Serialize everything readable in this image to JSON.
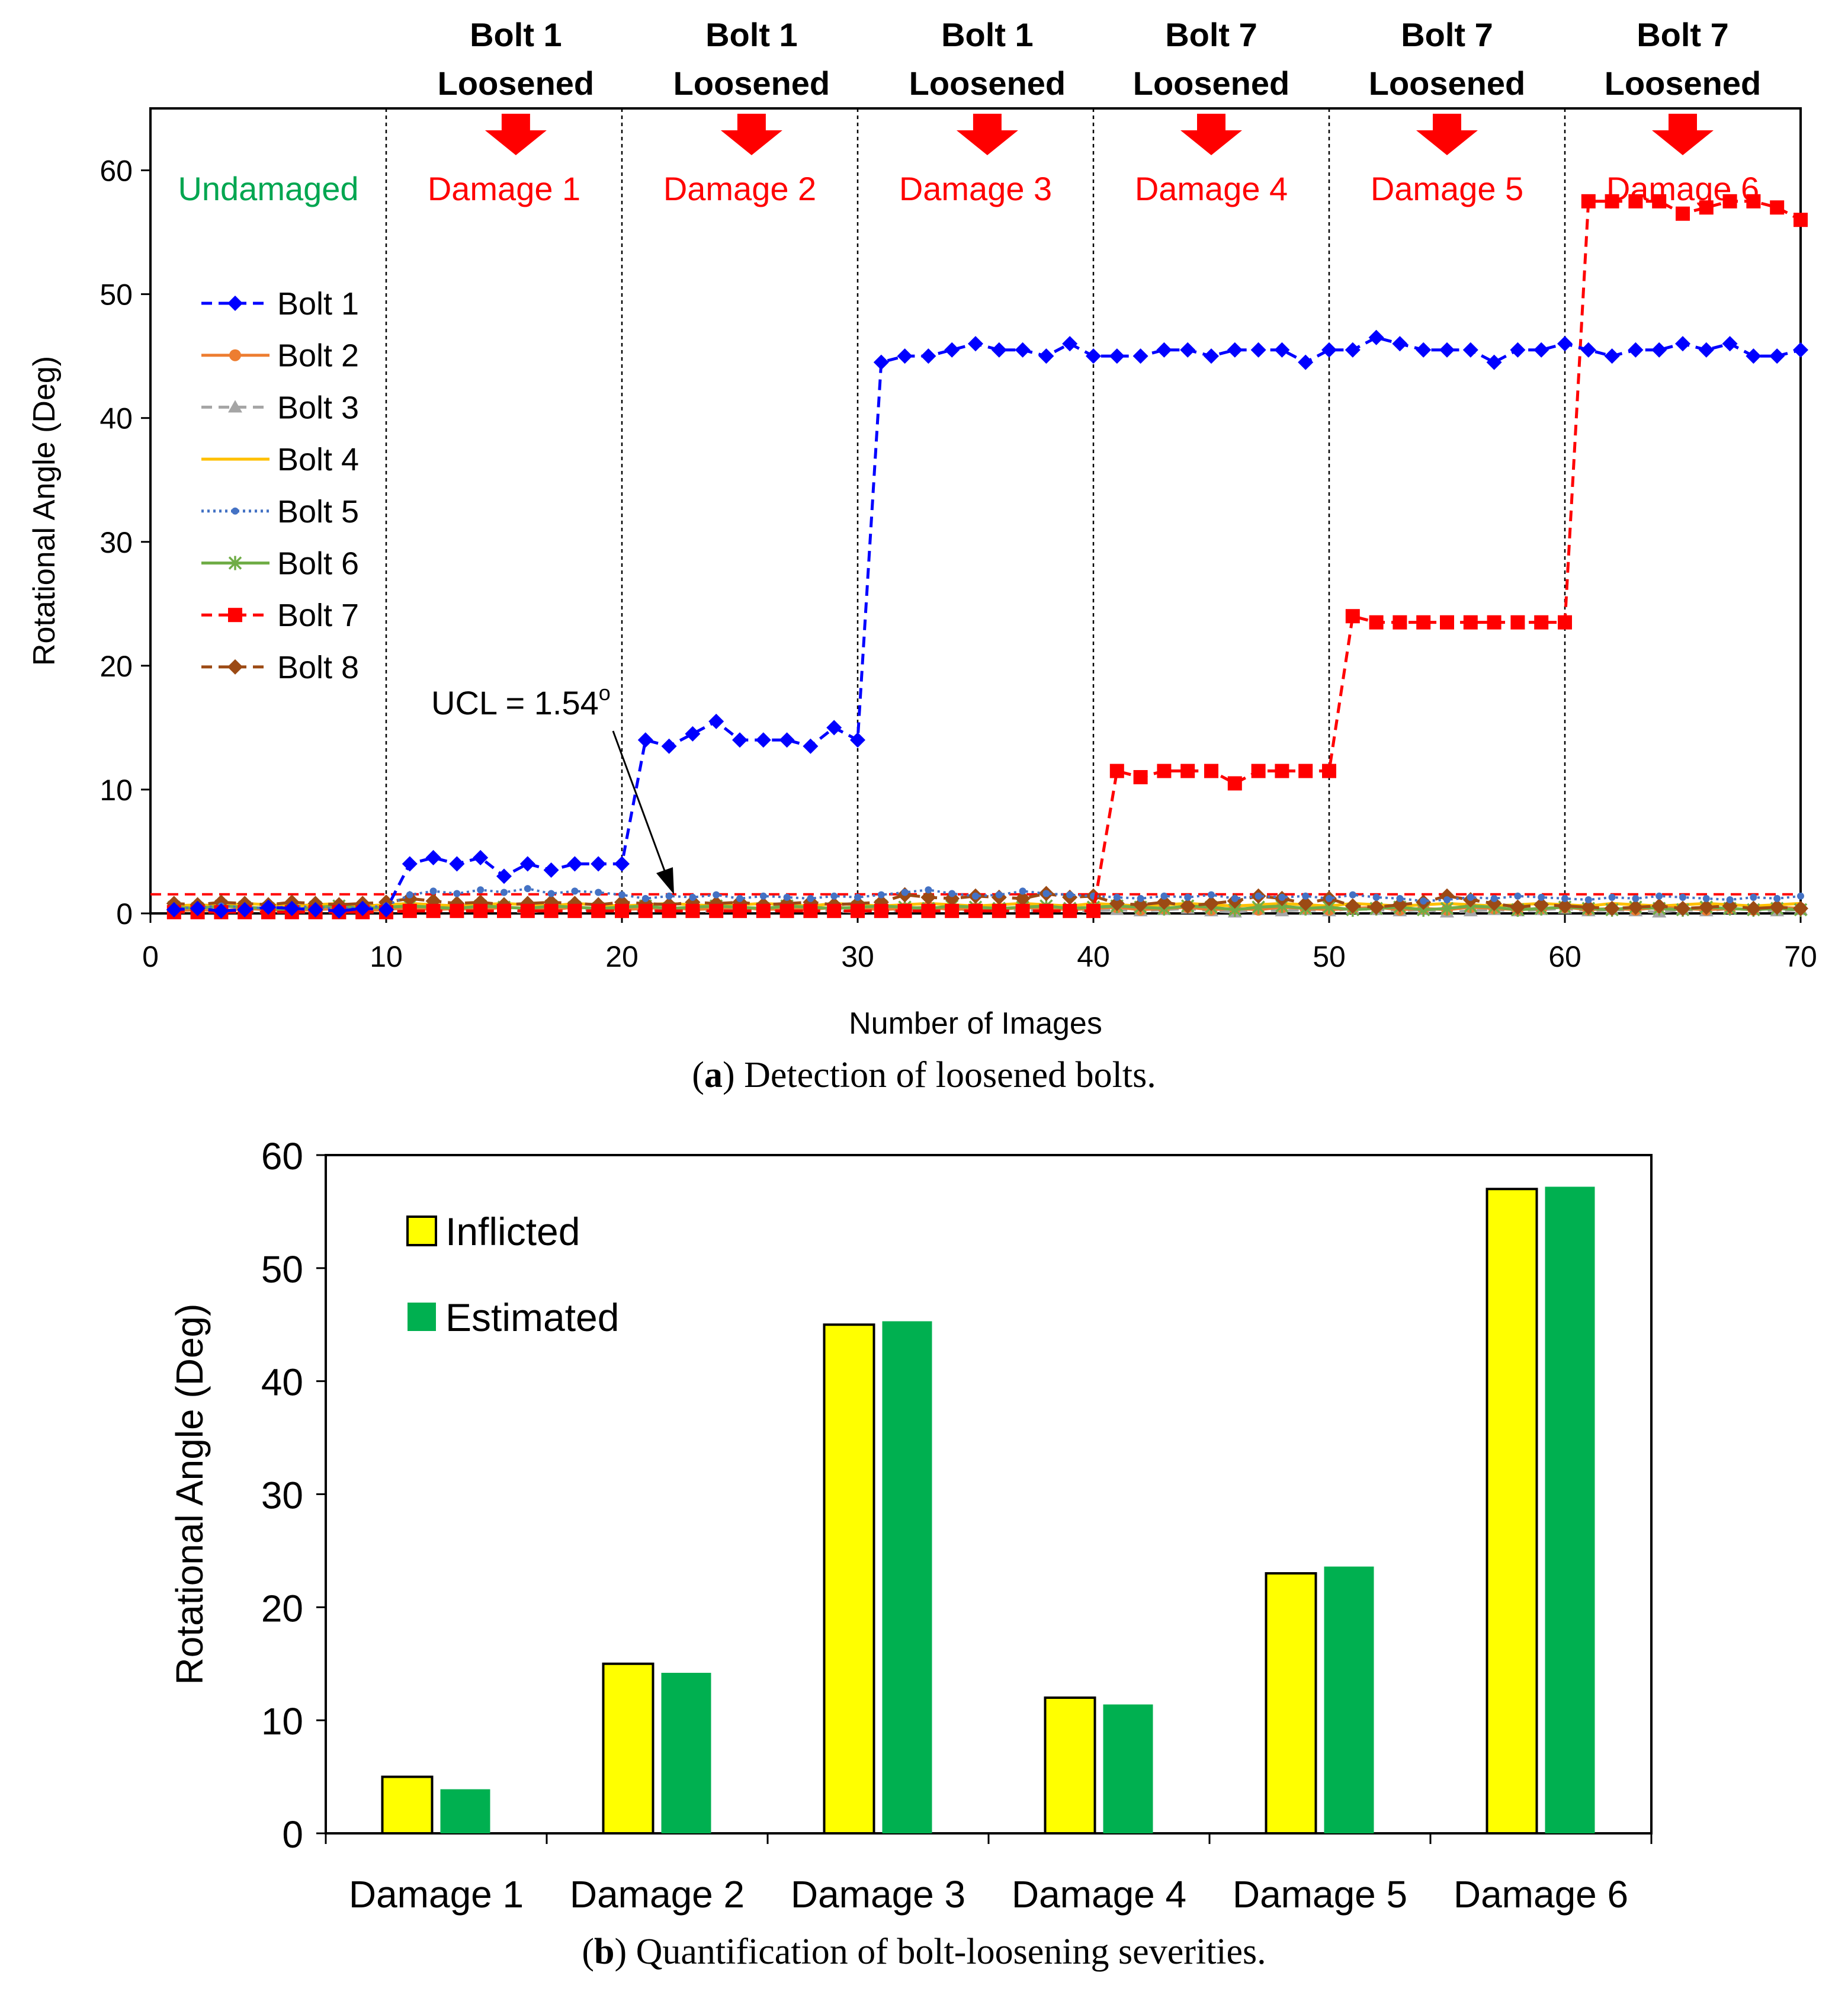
{
  "chart_data": [
    {
      "type": "line",
      "caption_prefix": "(",
      "caption_letter": "a",
      "caption_text": ") Detection of loosened bolts.",
      "xlabel": "Number of Images",
      "ylabel": "Rotational Angle (Deg)",
      "xlim": [
        0,
        70
      ],
      "ylim": [
        0,
        65
      ],
      "xticks": [
        0,
        10,
        20,
        30,
        40,
        50,
        60,
        70
      ],
      "yticks": [
        0,
        10,
        20,
        30,
        40,
        50,
        60
      ],
      "ucl_value": 1.54,
      "ucl_text": "UCL = 1.54",
      "ucl_superscript": "o",
      "phase_boundaries": [
        10,
        20,
        30,
        40,
        50,
        60
      ],
      "phases": [
        {
          "label": "Undamaged",
          "color": "#00a650",
          "x_from": 0,
          "x_to": 10
        },
        {
          "label": "Damage 1",
          "color": "#ff0000",
          "x_from": 10,
          "x_to": 20
        },
        {
          "label": "Damage 2",
          "color": "#ff0000",
          "x_from": 20,
          "x_to": 30
        },
        {
          "label": "Damage 3",
          "color": "#ff0000",
          "x_from": 30,
          "x_to": 40
        },
        {
          "label": "Damage 4",
          "color": "#ff0000",
          "x_from": 40,
          "x_to": 50
        },
        {
          "label": "Damage 5",
          "color": "#ff0000",
          "x_from": 50,
          "x_to": 60
        },
        {
          "label": "Damage 6",
          "color": "#ff0000",
          "x_from": 60,
          "x_to": 70
        }
      ],
      "events": [
        {
          "line1": "Bolt 1",
          "line2": "Loosened",
          "x": 15.5
        },
        {
          "line1": "Bolt 1",
          "line2": "Loosened",
          "x": 25.5
        },
        {
          "line1": "Bolt 1",
          "line2": "Loosened",
          "x": 35.5
        },
        {
          "line1": "Bolt 7",
          "line2": "Loosened",
          "x": 45.0
        },
        {
          "line1": "Bolt 7",
          "line2": "Loosened",
          "x": 55.0
        },
        {
          "line1": "Bolt 7",
          "line2": "Loosened",
          "x": 65.0
        }
      ],
      "series": [
        {
          "name": "Bolt 1",
          "color": "#0000ff",
          "marker": "diamond",
          "dash": "dash",
          "values": [
            0.3,
            0.4,
            0.2,
            0.3,
            0.5,
            0.4,
            0.3,
            0.2,
            0.4,
            0.3,
            4.0,
            4.5,
            4.0,
            4.5,
            3.0,
            4.0,
            3.5,
            4.0,
            4.0,
            4.0,
            14.0,
            13.5,
            14.5,
            15.5,
            14.0,
            14.0,
            14.0,
            13.5,
            15.0,
            14.0,
            44.5,
            45.0,
            45.0,
            45.5,
            46.0,
            45.5,
            45.5,
            45.0,
            46.0,
            45.0,
            45.0,
            45.0,
            45.5,
            45.5,
            45.0,
            45.5,
            45.5,
            45.5,
            44.5,
            45.5,
            45.5,
            46.5,
            46.0,
            45.5,
            45.5,
            45.5,
            44.5,
            45.5,
            45.5,
            46.0,
            45.5,
            45.0,
            45.5,
            45.5,
            46.0,
            45.5,
            46.0,
            45.0,
            45.0,
            45.5
          ]
        },
        {
          "name": "Bolt 2",
          "color": "#ed7d31",
          "marker": "circle",
          "dash": "solid",
          "values": [
            0.2,
            0.3,
            0.2,
            0.4,
            0.3,
            0.2,
            0.3,
            0.4,
            0.2,
            0.3,
            0.5,
            0.3,
            0.4,
            0.3,
            0.5,
            0.4,
            0.3,
            0.5,
            0.4,
            0.3,
            0.4,
            0.5,
            0.3,
            0.4,
            0.5,
            0.3,
            0.4,
            0.3,
            0.5,
            0.4,
            0.3,
            0.4,
            0.5,
            0.3,
            0.4,
            0.3,
            0.5,
            0.4,
            0.3,
            0.4,
            0.5,
            0.3,
            0.4,
            0.5,
            0.3,
            0.4,
            0.3,
            0.5,
            0.4,
            0.3,
            0.4,
            0.5,
            0.3,
            0.4,
            0.3,
            0.5,
            0.4,
            0.3,
            0.4,
            0.5,
            0.3,
            0.4,
            0.3,
            0.5,
            0.4,
            0.3,
            0.4,
            0.3,
            0.5,
            0.4
          ]
        },
        {
          "name": "Bolt 3",
          "color": "#a5a5a5",
          "marker": "triangle",
          "dash": "dash",
          "values": [
            0.1,
            0.2,
            0.3,
            0.2,
            0.1,
            0.2,
            0.3,
            0.2,
            0.1,
            0.2,
            0.3,
            0.2,
            0.4,
            0.3,
            0.2,
            0.1,
            0.3,
            0.2,
            0.4,
            0.3,
            0.2,
            0.3,
            0.1,
            0.2,
            0.3,
            0.2,
            0.4,
            0.3,
            0.2,
            0.1,
            0.3,
            0.2,
            0.3,
            0.2,
            0.4,
            0.3,
            0.2,
            0.3,
            0.1,
            0.2,
            0.3,
            0.2,
            0.3,
            0.4,
            0.2,
            0.1,
            0.3,
            0.2,
            0.3,
            0.2,
            0.4,
            0.3,
            0.2,
            0.3,
            0.1,
            0.2,
            0.3,
            0.2,
            0.3,
            0.4,
            0.2,
            0.3,
            0.2,
            0.1,
            0.3,
            0.2,
            0.4,
            0.3,
            0.2,
            0.3
          ]
        },
        {
          "name": "Bolt 4",
          "color": "#ffc000",
          "marker": "none",
          "dash": "solid",
          "values": [
            0.6,
            0.7,
            0.6,
            0.8,
            0.7,
            0.6,
            0.7,
            0.8,
            0.6,
            0.7,
            0.8,
            0.7,
            0.6,
            0.7,
            0.8,
            0.7,
            0.6,
            0.8,
            0.7,
            0.6,
            0.7,
            0.8,
            0.7,
            0.6,
            0.7,
            0.8,
            0.7,
            0.6,
            0.8,
            0.7,
            0.6,
            0.7,
            0.8,
            0.7,
            0.6,
            0.7,
            0.8,
            0.7,
            0.6,
            0.8,
            0.7,
            0.6,
            0.7,
            0.8,
            0.7,
            0.6,
            0.7,
            0.8,
            0.7,
            0.6,
            0.8,
            0.7,
            0.6,
            0.7,
            0.8,
            0.7,
            0.6,
            0.7,
            0.8,
            0.7,
            0.6,
            0.8,
            0.7,
            0.6,
            0.7,
            0.8,
            0.7,
            0.6,
            0.7,
            0.8
          ]
        },
        {
          "name": "Bolt 5",
          "color": "#4472c4",
          "marker": "dot",
          "dash": "dot",
          "values": [
            0.4,
            0.5,
            0.6,
            0.5,
            0.4,
            0.6,
            0.5,
            0.4,
            0.5,
            0.6,
            1.5,
            1.8,
            1.6,
            1.9,
            1.7,
            2.0,
            1.6,
            1.8,
            1.7,
            1.5,
            1.2,
            1.4,
            1.3,
            1.5,
            1.2,
            1.4,
            1.3,
            1.2,
            1.4,
            1.3,
            1.5,
            1.7,
            1.9,
            1.6,
            1.4,
            1.5,
            1.8,
            1.6,
            1.5,
            1.4,
            1.3,
            1.2,
            1.4,
            1.3,
            1.5,
            1.2,
            1.4,
            1.3,
            1.4,
            1.2,
            1.5,
            1.3,
            1.2,
            1.0,
            1.1,
            1.3,
            1.2,
            1.4,
            1.3,
            1.2,
            1.1,
            1.3,
            1.2,
            1.4,
            1.3,
            1.2,
            1.1,
            1.3,
            1.2,
            1.4
          ]
        },
        {
          "name": "Bolt 6",
          "color": "#70ad47",
          "marker": "asterisk",
          "dash": "solid",
          "values": [
            0.5,
            0.4,
            0.6,
            0.5,
            0.4,
            0.3,
            0.5,
            0.6,
            0.4,
            0.5,
            0.6,
            0.5,
            0.4,
            0.6,
            0.5,
            0.4,
            0.6,
            0.5,
            0.4,
            0.5,
            0.6,
            0.4,
            0.5,
            0.6,
            0.5,
            0.4,
            0.6,
            0.5,
            0.4,
            0.5,
            0.6,
            0.5,
            0.4,
            0.6,
            0.5,
            0.4,
            0.5,
            0.6,
            0.4,
            0.5,
            0.6,
            0.5,
            0.4,
            0.6,
            0.5,
            0.3,
            0.5,
            0.6,
            0.4,
            0.5,
            0.3,
            0.4,
            0.5,
            0.3,
            0.4,
            0.6,
            0.5,
            0.3,
            0.4,
            0.5,
            0.4,
            0.3,
            0.5,
            0.4,
            0.3,
            0.5,
            0.4,
            0.3,
            0.4,
            0.3
          ]
        },
        {
          "name": "Bolt 7",
          "color": "#ff0000",
          "marker": "square",
          "dash": "dash",
          "values": [
            0.1,
            0.1,
            0.1,
            0.1,
            0.1,
            0.1,
            0.1,
            0.1,
            0.1,
            0.1,
            0.2,
            0.2,
            0.2,
            0.2,
            0.2,
            0.2,
            0.2,
            0.2,
            0.2,
            0.2,
            0.2,
            0.2,
            0.2,
            0.2,
            0.2,
            0.2,
            0.2,
            0.2,
            0.2,
            0.2,
            0.2,
            0.2,
            0.2,
            0.2,
            0.2,
            0.2,
            0.2,
            0.2,
            0.2,
            0.2,
            11.5,
            11.0,
            11.5,
            11.5,
            11.5,
            10.5,
            11.5,
            11.5,
            11.5,
            11.5,
            24.0,
            23.5,
            23.5,
            23.5,
            23.5,
            23.5,
            23.5,
            23.5,
            23.5,
            23.5,
            57.5,
            57.5,
            57.5,
            57.5,
            56.5,
            57.0,
            57.5,
            57.5,
            57.0,
            56.0
          ]
        },
        {
          "name": "Bolt 8",
          "color": "#9c4a14",
          "marker": "diamond",
          "dash": "dash",
          "values": [
            0.8,
            0.7,
            0.9,
            0.8,
            0.7,
            0.9,
            0.8,
            0.7,
            0.8,
            0.9,
            1.2,
            1.0,
            0.8,
            0.9,
            0.7,
            0.8,
            0.9,
            0.8,
            0.7,
            0.9,
            0.8,
            0.7,
            0.9,
            0.8,
            0.9,
            0.7,
            0.8,
            0.9,
            0.7,
            0.8,
            0.9,
            1.5,
            1.3,
            1.2,
            1.4,
            1.3,
            1.2,
            1.6,
            1.3,
            1.4,
            0.8,
            0.7,
            0.9,
            0.6,
            0.8,
            1.0,
            1.4,
            1.2,
            0.8,
            1.2,
            0.6,
            0.5,
            0.7,
            0.9,
            1.4,
            1.1,
            0.8,
            0.5,
            0.7,
            0.6,
            0.5,
            0.4,
            0.5,
            0.6,
            0.4,
            0.5,
            0.6,
            0.4,
            0.5,
            0.4
          ]
        }
      ]
    },
    {
      "type": "bar",
      "caption_prefix": "(",
      "caption_letter": "b",
      "caption_text": ") Quantification of bolt-loosening severities.",
      "ylabel": "Rotational Angle (Deg)",
      "ylim": [
        0,
        60
      ],
      "yticks": [
        0,
        10,
        20,
        30,
        40,
        50,
        60
      ],
      "categories": [
        "Damage 1",
        "Damage 2",
        "Damage 3",
        "Damage 4",
        "Damage 5",
        "Damage 6"
      ],
      "series": [
        {
          "name": "Inflicted",
          "color": "#ffff00",
          "outline": "#000000",
          "values": [
            5,
            15,
            45,
            12,
            23,
            57
          ]
        },
        {
          "name": "Estimated",
          "color": "#00b050",
          "outline": "none",
          "values": [
            3.9,
            14.2,
            45.3,
            11.4,
            23.6,
            57.2
          ]
        }
      ]
    }
  ]
}
